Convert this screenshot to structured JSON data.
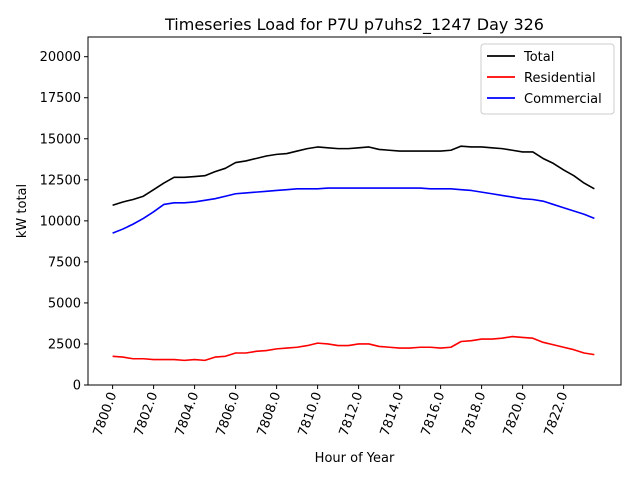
{
  "chart_data": {
    "type": "line",
    "title": "Timeseries Load for P7U p7uhs2_1247  Day 326",
    "xlabel": "Hour of Year",
    "ylabel": "kW total",
    "xlim": [
      7798.8,
      7824.8
    ],
    "ylim": [
      0,
      21200
    ],
    "xticks": [
      7800,
      7802,
      7804,
      7806,
      7808,
      7810,
      7812,
      7814,
      7816,
      7818,
      7820,
      7822
    ],
    "xtick_labels": [
      "7800.0",
      "7802.0",
      "7804.0",
      "7806.0",
      "7808.0",
      "7810.0",
      "7812.0",
      "7814.0",
      "7816.0",
      "7818.0",
      "7820.0",
      "7822.0"
    ],
    "yticks": [
      0,
      2500,
      5000,
      7500,
      10000,
      12500,
      15000,
      17500,
      20000
    ],
    "ytick_labels": [
      "0",
      "2500",
      "5000",
      "7500",
      "10000",
      "12500",
      "15000",
      "17500",
      "20000"
    ],
    "legend_position": "top-right",
    "grid": false,
    "x": [
      7800,
      7800.5,
      7801,
      7801.5,
      7802,
      7802.5,
      7803,
      7803.5,
      7804,
      7804.5,
      7805,
      7805.5,
      7806,
      7806.5,
      7807,
      7807.5,
      7808,
      7808.5,
      7809,
      7809.5,
      7810,
      7810.5,
      7811,
      7811.5,
      7812,
      7812.5,
      7813,
      7813.5,
      7814,
      7814.5,
      7815,
      7815.5,
      7816,
      7816.5,
      7817,
      7817.5,
      7818,
      7818.5,
      7819,
      7819.5,
      7820,
      7820.5,
      7821,
      7821.5,
      7822,
      7822.5,
      7823,
      7823.5
    ],
    "series": [
      {
        "name": "Total",
        "color": "#000000",
        "values": [
          10950,
          11150,
          11300,
          11500,
          11900,
          12300,
          12650,
          12650,
          12700,
          12750,
          13000,
          13200,
          13550,
          13650,
          13800,
          13950,
          14050,
          14100,
          14250,
          14400,
          14500,
          14450,
          14400,
          14400,
          14450,
          14500,
          14350,
          14300,
          14250,
          14250,
          14250,
          14250,
          14250,
          14300,
          14550,
          14500,
          14500,
          14450,
          14400,
          14300,
          14200,
          14200,
          13800,
          13500,
          13100,
          12750,
          12300,
          11950
        ]
      },
      {
        "name": "Residential",
        "color": "#ff0000",
        "values": [
          1750,
          1700,
          1600,
          1600,
          1550,
          1550,
          1550,
          1500,
          1550,
          1500,
          1700,
          1750,
          1950,
          1950,
          2050,
          2100,
          2200,
          2250,
          2300,
          2400,
          2550,
          2500,
          2400,
          2400,
          2500,
          2500,
          2350,
          2300,
          2250,
          2250,
          2300,
          2300,
          2250,
          2300,
          2650,
          2700,
          2800,
          2800,
          2850,
          2950,
          2900,
          2850,
          2600,
          2450,
          2300,
          2150,
          1950,
          1850
        ]
      },
      {
        "name": "Commercial",
        "color": "#0000ff",
        "values": [
          9250,
          9500,
          9800,
          10150,
          10550,
          11000,
          11100,
          11100,
          11150,
          11250,
          11350,
          11500,
          11650,
          11700,
          11750,
          11800,
          11850,
          11900,
          11950,
          11950,
          11950,
          12000,
          12000,
          12000,
          12000,
          12000,
          12000,
          12000,
          12000,
          12000,
          12000,
          11950,
          11950,
          11950,
          11900,
          11850,
          11750,
          11650,
          11550,
          11450,
          11350,
          11300,
          11200,
          11000,
          10800,
          10600,
          10400,
          10150
        ]
      }
    ]
  }
}
